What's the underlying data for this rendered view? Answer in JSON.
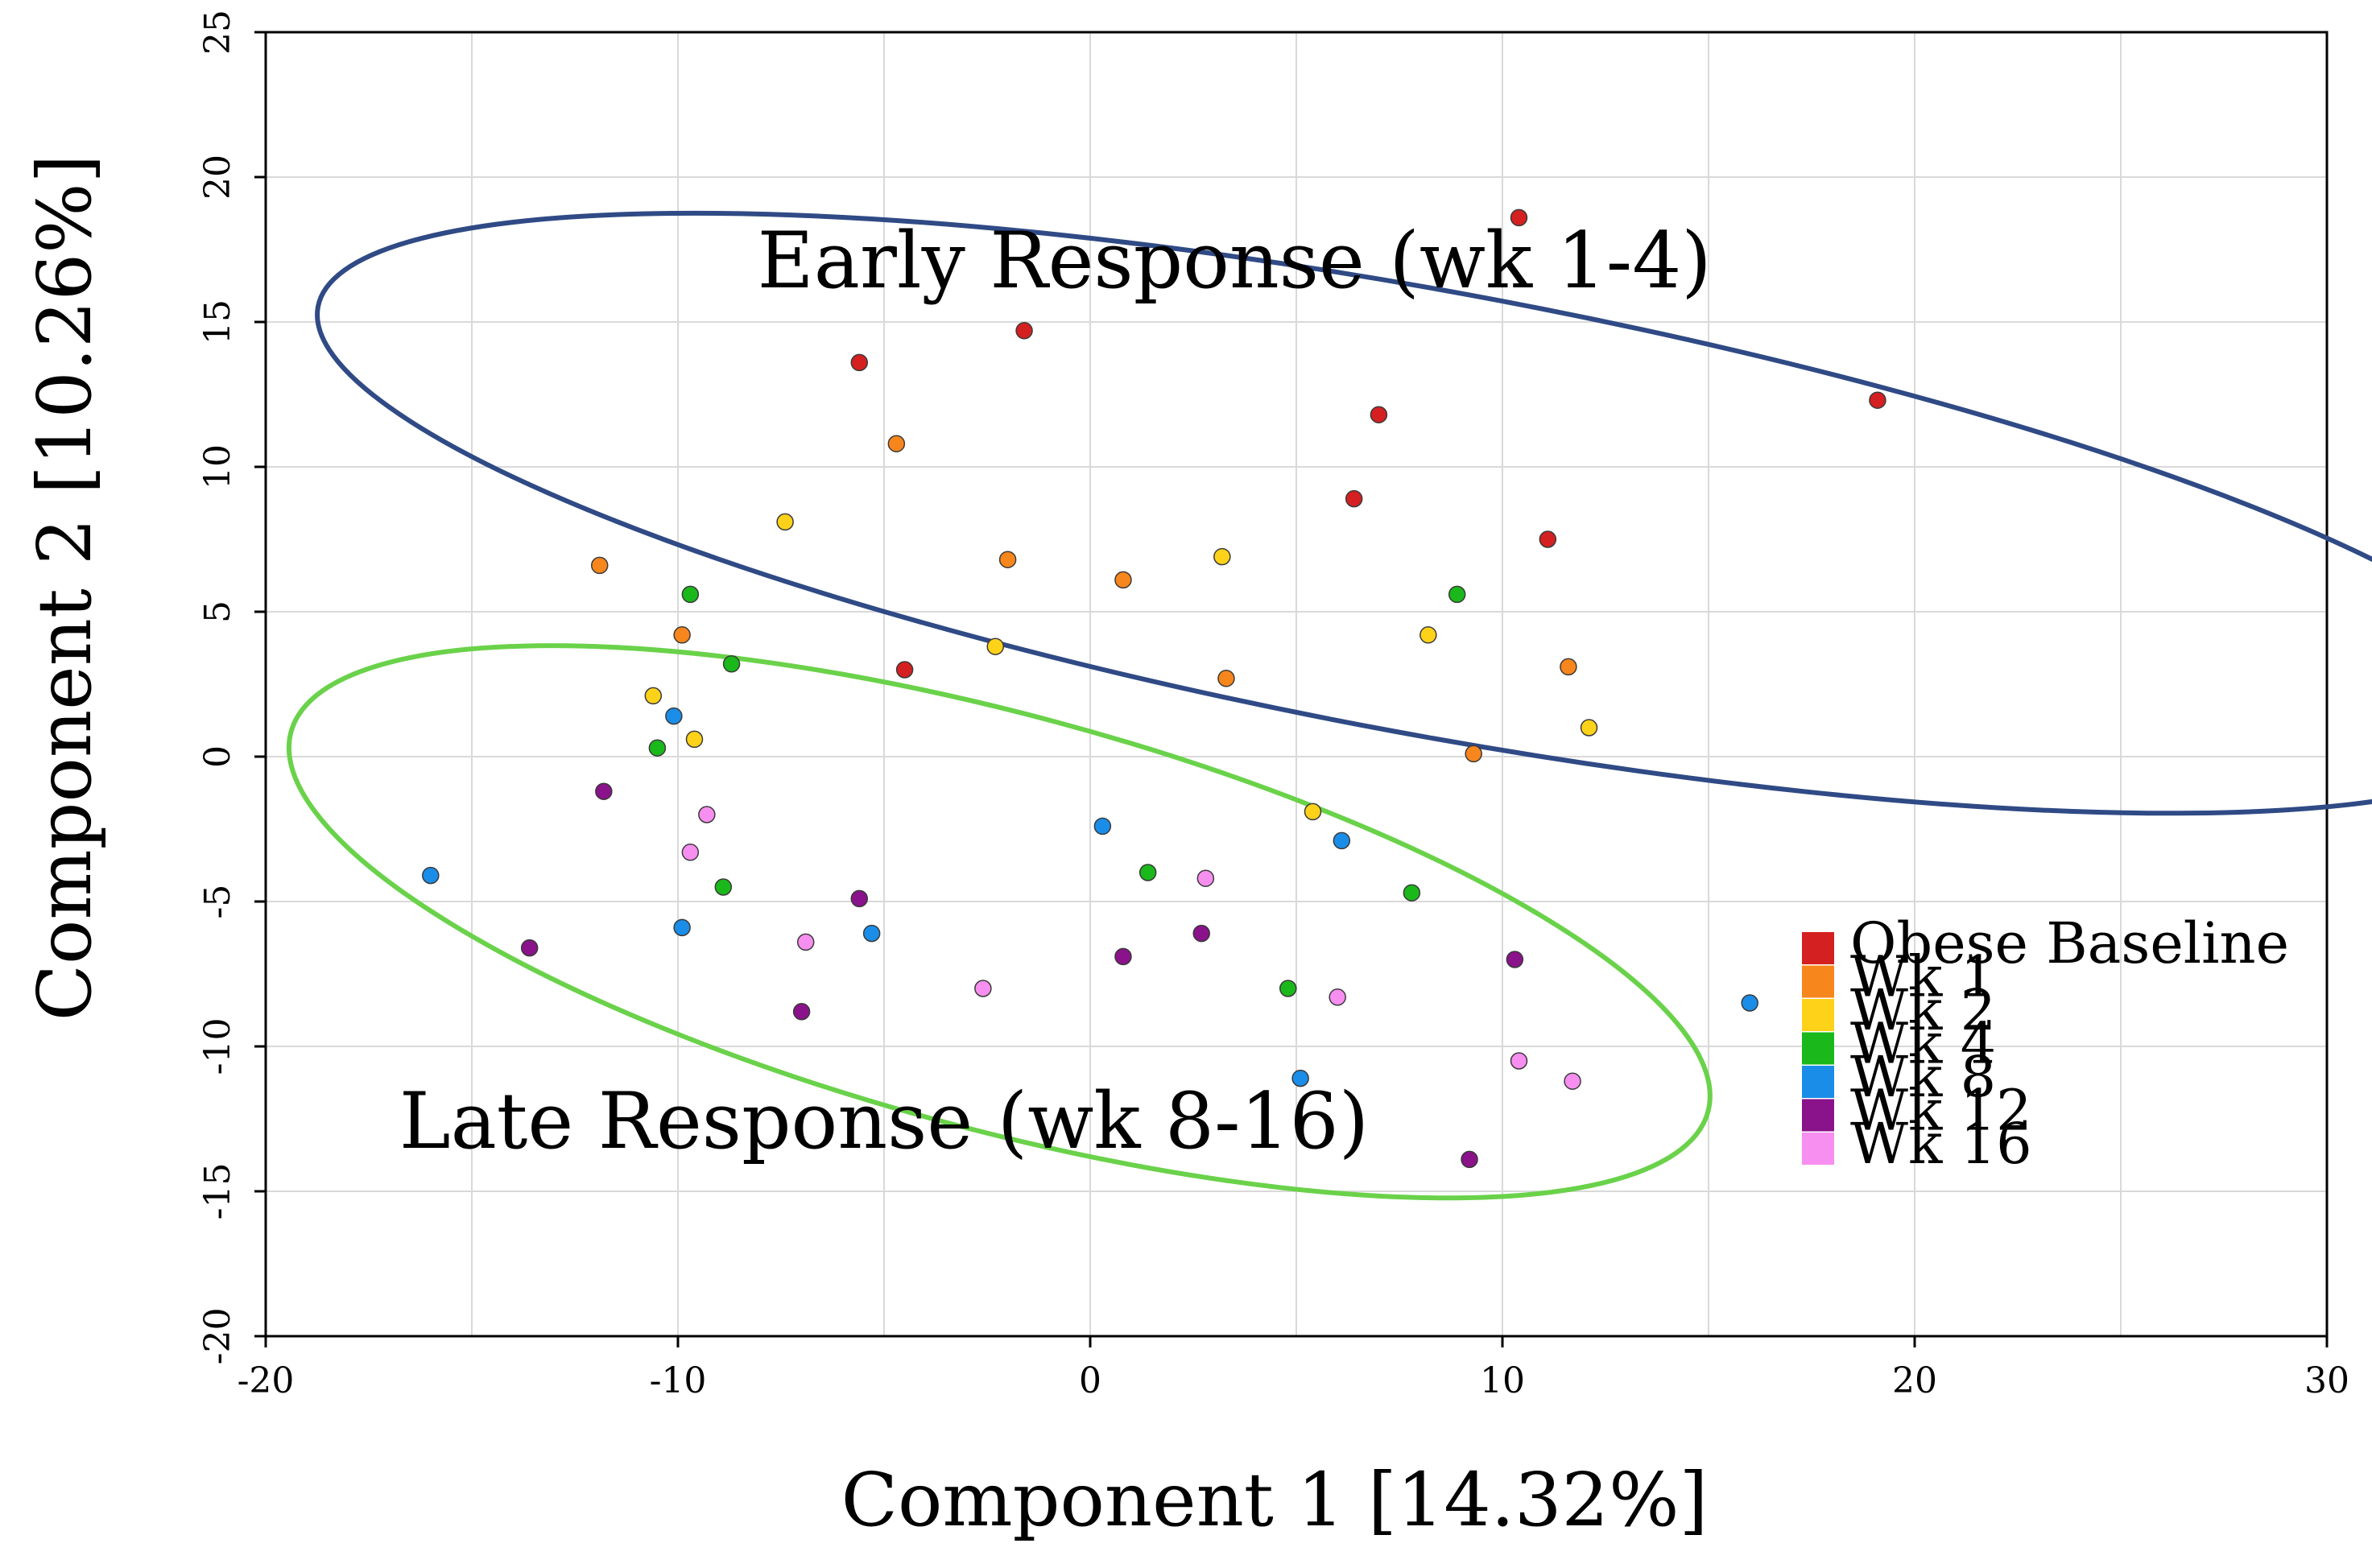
{
  "chart_data": {
    "type": "scatter",
    "xlabel": "Component 1 [14.32%]",
    "ylabel": "Component 2 [10.26%]",
    "xlim": [
      -20,
      30
    ],
    "ylim": [
      -20,
      25
    ],
    "xticks": [
      -20,
      -10,
      0,
      10,
      20,
      30
    ],
    "yticks": [
      -20,
      -15,
      -10,
      -5,
      0,
      5,
      10,
      15,
      20,
      25
    ],
    "grid": true,
    "legend_position": "bottom-right",
    "series": [
      {
        "name": "Obese Baseline",
        "color": "#d42020",
        "points": [
          [
            10.4,
            18.6
          ],
          [
            -1.6,
            14.7
          ],
          [
            -5.6,
            13.6
          ],
          [
            7.0,
            11.8
          ],
          [
            19.1,
            12.3
          ],
          [
            6.4,
            8.9
          ],
          [
            11.1,
            7.5
          ],
          [
            -4.5,
            3.0
          ]
        ]
      },
      {
        "name": "Wk 1",
        "color": "#f7861c",
        "points": [
          [
            -4.7,
            10.8
          ],
          [
            -11.9,
            6.6
          ],
          [
            -2.0,
            6.8
          ],
          [
            0.8,
            6.1
          ],
          [
            -9.9,
            4.2
          ],
          [
            3.3,
            2.7
          ],
          [
            11.6,
            3.1
          ],
          [
            9.3,
            0.1
          ]
        ]
      },
      {
        "name": "Wk 2",
        "color": "#ffd21a",
        "points": [
          [
            -7.4,
            8.1
          ],
          [
            3.2,
            6.9
          ],
          [
            8.2,
            4.2
          ],
          [
            -2.3,
            3.8
          ],
          [
            -10.6,
            2.1
          ],
          [
            -9.6,
            0.6
          ],
          [
            12.1,
            1.0
          ],
          [
            5.4,
            -1.9
          ]
        ]
      },
      {
        "name": "Wk 4",
        "color": "#1ab81a",
        "points": [
          [
            -9.7,
            5.6
          ],
          [
            8.9,
            5.6
          ],
          [
            -8.7,
            3.2
          ],
          [
            -10.5,
            0.3
          ],
          [
            -8.9,
            -4.5
          ],
          [
            1.4,
            -4.0
          ],
          [
            7.8,
            -4.7
          ],
          [
            4.8,
            -8.0
          ]
        ]
      },
      {
        "name": "Wk 8",
        "color": "#1a8de8",
        "points": [
          [
            -10.1,
            1.4
          ],
          [
            0.3,
            -2.4
          ],
          [
            6.1,
            -2.9
          ],
          [
            -16.0,
            -4.1
          ],
          [
            -9.9,
            -5.9
          ],
          [
            -5.3,
            -6.1
          ],
          [
            16.0,
            -8.5
          ],
          [
            5.1,
            -11.1
          ]
        ]
      },
      {
        "name": "Wk 12",
        "color": "#8a128a",
        "points": [
          [
            -11.8,
            -1.2
          ],
          [
            -5.6,
            -4.9
          ],
          [
            -13.6,
            -6.6
          ],
          [
            2.7,
            -6.1
          ],
          [
            0.8,
            -6.9
          ],
          [
            10.3,
            -7.0
          ],
          [
            -7.0,
            -8.8
          ],
          [
            9.2,
            -13.9
          ]
        ]
      },
      {
        "name": "Wk 16",
        "color": "#f78ff0",
        "points": [
          [
            -9.3,
            -2.0
          ],
          [
            -9.7,
            -3.3
          ],
          [
            2.8,
            -4.2
          ],
          [
            -6.9,
            -6.4
          ],
          [
            -2.6,
            -8.0
          ],
          [
            6.0,
            -8.3
          ],
          [
            10.4,
            -10.5
          ],
          [
            11.7,
            -11.2
          ]
        ]
      }
    ],
    "annotations": [
      {
        "text": "Early Response (wk 1-4)",
        "x": 3.5,
        "y": 16.2,
        "color": "#2f4a85"
      },
      {
        "text": "Late Response (wk 8-16)",
        "x": -5.0,
        "y": -13.5,
        "color": "#6ad24a"
      }
    ]
  }
}
